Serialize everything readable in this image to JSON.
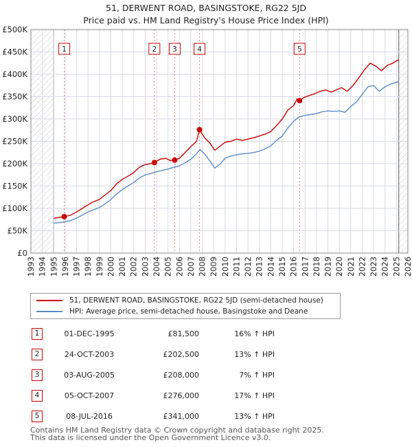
{
  "header": {
    "title_line1": "51, DERWENT ROAD, BASINGSTOKE, RG22 5JD",
    "title_line2": "Price paid vs. HM Land Registry's House Price Index (HPI)"
  },
  "colors": {
    "price_line": "#cc0000",
    "hpi_line": "#5b8ac6",
    "sale_vline": "#e08080",
    "grid": "#d8dbe6",
    "plot_bg": "#ffffff",
    "hatch": "#c8c8c8"
  },
  "chart_data": {
    "type": "line",
    "title": "51, DERWENT ROAD, BASINGSTOKE, RG22 5JD",
    "subtitle": "Price paid vs. HM Land Registry's House Price Index (HPI)",
    "xlabel": "",
    "ylabel": "",
    "xlim": [
      1993,
      2026
    ],
    "ylim": [
      0,
      500000
    ],
    "grid": true,
    "legend_position": "below",
    "hatched_ranges": [
      [
        1993,
        1995.0
      ],
      [
        2025.2,
        2026
      ]
    ],
    "x_ticks": [
      "1993",
      "1994",
      "1995",
      "1996",
      "1997",
      "1998",
      "1999",
      "2000",
      "2001",
      "2002",
      "2003",
      "2004",
      "2005",
      "2006",
      "2007",
      "2008",
      "2009",
      "2010",
      "2011",
      "2012",
      "2013",
      "2014",
      "2015",
      "2016",
      "2017",
      "2018",
      "2019",
      "2020",
      "2021",
      "2022",
      "2023",
      "2024",
      "2025",
      "2026"
    ],
    "y_ticks": [
      {
        "value": 0,
        "label": "£0"
      },
      {
        "value": 50000,
        "label": "£50K"
      },
      {
        "value": 100000,
        "label": "£100K"
      },
      {
        "value": 150000,
        "label": "£150K"
      },
      {
        "value": 200000,
        "label": "£200K"
      },
      {
        "value": 250000,
        "label": "£250K"
      },
      {
        "value": 300000,
        "label": "£300K"
      },
      {
        "value": 350000,
        "label": "£350K"
      },
      {
        "value": 400000,
        "label": "£400K"
      },
      {
        "value": 450000,
        "label": "£450K"
      },
      {
        "value": 500000,
        "label": "£500K"
      }
    ],
    "series": [
      {
        "name": "51, DERWENT ROAD, BASINGSTOKE, RG22 5JD (semi-detached house)",
        "color": "#cc0000",
        "x": [
          1995.0,
          1995.5,
          1995.92,
          1996.5,
          1997.0,
          1997.5,
          1998.0,
          1998.5,
          1999.0,
          1999.5,
          2000.0,
          2000.5,
          2001.0,
          2001.5,
          2002.0,
          2002.5,
          2003.0,
          2003.5,
          2003.81,
          2004.3,
          2004.8,
          2005.2,
          2005.59,
          2006.0,
          2006.5,
          2007.0,
          2007.5,
          2007.76,
          2008.2,
          2008.7,
          2009.1,
          2009.6,
          2010.0,
          2010.5,
          2011.0,
          2011.5,
          2012.0,
          2012.5,
          2013.0,
          2013.5,
          2014.0,
          2014.5,
          2015.0,
          2015.5,
          2016.0,
          2016.3,
          2016.52,
          2016.9,
          2017.3,
          2017.8,
          2018.3,
          2018.8,
          2019.3,
          2019.8,
          2020.2,
          2020.7,
          2021.2,
          2021.7,
          2022.2,
          2022.7,
          2023.2,
          2023.7,
          2024.2,
          2024.7,
          2025.0,
          2025.2
        ],
        "values": [
          78000,
          80000,
          81500,
          85000,
          92000,
          100000,
          108000,
          115000,
          120000,
          130000,
          140000,
          155000,
          165000,
          172000,
          180000,
          192000,
          198000,
          200000,
          202500,
          210000,
          212000,
          207000,
          208000,
          212000,
          225000,
          238000,
          250000,
          276000,
          258000,
          245000,
          230000,
          240000,
          248000,
          250000,
          255000,
          252000,
          255000,
          258000,
          262000,
          266000,
          272000,
          285000,
          300000,
          320000,
          330000,
          345000,
          341000,
          348000,
          352000,
          356000,
          362000,
          365000,
          360000,
          366000,
          370000,
          362000,
          375000,
          392000,
          410000,
          425000,
          418000,
          408000,
          420000,
          425000,
          430000,
          432000
        ]
      },
      {
        "name": "HPI: Average price, semi-detached house, Basingstoke and Deane",
        "color": "#5b8ac6",
        "x": [
          1995.0,
          1995.5,
          1996.0,
          1996.5,
          1997.0,
          1997.5,
          1998.0,
          1998.5,
          1999.0,
          1999.5,
          2000.0,
          2000.5,
          2001.0,
          2001.5,
          2002.0,
          2002.5,
          2003.0,
          2003.5,
          2004.0,
          2004.5,
          2005.0,
          2005.5,
          2006.0,
          2006.5,
          2007.0,
          2007.5,
          2007.8,
          2008.2,
          2008.7,
          2009.1,
          2009.6,
          2010.0,
          2010.5,
          2011.0,
          2011.5,
          2012.0,
          2012.5,
          2013.0,
          2013.5,
          2014.0,
          2014.5,
          2015.0,
          2015.5,
          2016.0,
          2016.5,
          2017.0,
          2017.5,
          2018.0,
          2018.5,
          2019.0,
          2019.5,
          2020.0,
          2020.5,
          2021.0,
          2021.5,
          2022.0,
          2022.5,
          2023.0,
          2023.5,
          2024.0,
          2024.5,
          2025.0,
          2025.2
        ],
        "values": [
          67000,
          68000,
          70000,
          73000,
          78000,
          85000,
          92000,
          97000,
          102000,
          110000,
          120000,
          132000,
          142000,
          150000,
          158000,
          168000,
          175000,
          178000,
          182000,
          185000,
          188000,
          192000,
          195000,
          202000,
          210000,
          222000,
          232000,
          222000,
          205000,
          190000,
          200000,
          212000,
          217000,
          220000,
          222000,
          223000,
          225000,
          228000,
          233000,
          240000,
          252000,
          262000,
          280000,
          295000,
          305000,
          308000,
          310000,
          312000,
          316000,
          318000,
          317000,
          318000,
          315000,
          328000,
          338000,
          355000,
          372000,
          375000,
          362000,
          372000,
          378000,
          382000,
          384000
        ]
      }
    ],
    "sales": [
      {
        "label": "1",
        "x": 1995.92,
        "price": 81500
      },
      {
        "label": "2",
        "x": 2003.81,
        "price": 202500
      },
      {
        "label": "3",
        "x": 2005.59,
        "price": 208000
      },
      {
        "label": "4",
        "x": 2007.76,
        "price": 276000
      },
      {
        "label": "5",
        "x": 2016.52,
        "price": 341000
      }
    ]
  },
  "legend": {
    "price_label": "51, DERWENT ROAD, BASINGSTOKE, RG22 5JD (semi-detached house)",
    "hpi_label": "HPI: Average price, semi-detached house, Basingstoke and Deane"
  },
  "transactions": [
    {
      "num": "1",
      "date": "01-DEC-1995",
      "price": "£81,500",
      "hpi": "16% ↑ HPI"
    },
    {
      "num": "2",
      "date": "24-OCT-2003",
      "price": "£202,500",
      "hpi": "13% ↑ HPI"
    },
    {
      "num": "3",
      "date": "03-AUG-2005",
      "price": "£208,000",
      "hpi": "7% ↑ HPI"
    },
    {
      "num": "4",
      "date": "05-OCT-2007",
      "price": "£276,000",
      "hpi": "17% ↑ HPI"
    },
    {
      "num": "5",
      "date": "08-JUL-2016",
      "price": "£341,000",
      "hpi": "13% ↑ HPI"
    }
  ],
  "footer": {
    "line1": "Contains HM Land Registry data © Crown copyright and database right 2025.",
    "line2": "This data is licensed under the Open Government Licence v3.0."
  }
}
